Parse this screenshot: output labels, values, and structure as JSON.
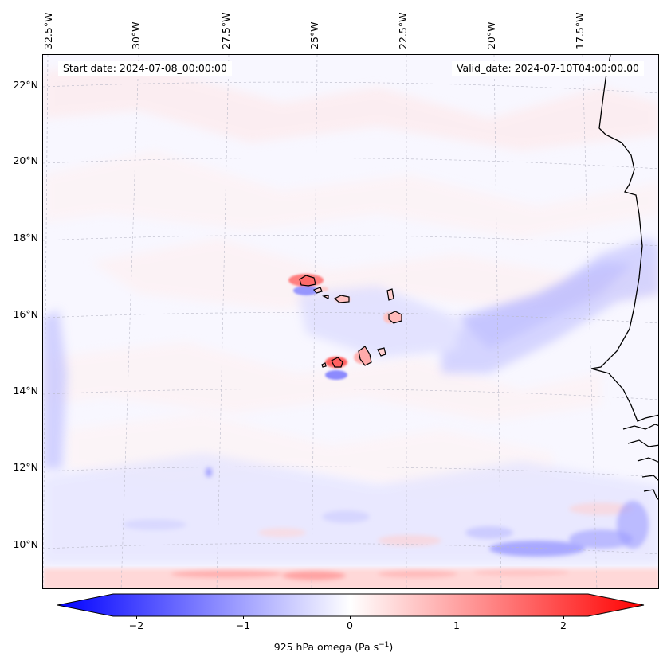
{
  "header": {
    "start_date": "Start date: 2024-07-08_00:00:00",
    "valid_date": "Valid_date: 2024-07-10T04:00:00.00"
  },
  "axes": {
    "lon_labels": [
      "32.5°W",
      "30°W",
      "27.5°W",
      "25°W",
      "22.5°W",
      "20°W",
      "17.5°W"
    ],
    "lat_labels": [
      "22°N",
      "20°N",
      "18°N",
      "16°N",
      "14°N",
      "12°N",
      "10°N"
    ]
  },
  "colorbar": {
    "ticks": [
      "−2",
      "−1",
      "0",
      "1",
      "2"
    ],
    "label": "925 hPa omega (Pa s",
    "label_sup": "−1",
    "label_end": ")",
    "min_color": "#0000ff",
    "mid_color": "#ffffff",
    "max_color": "#ff0000"
  }
}
